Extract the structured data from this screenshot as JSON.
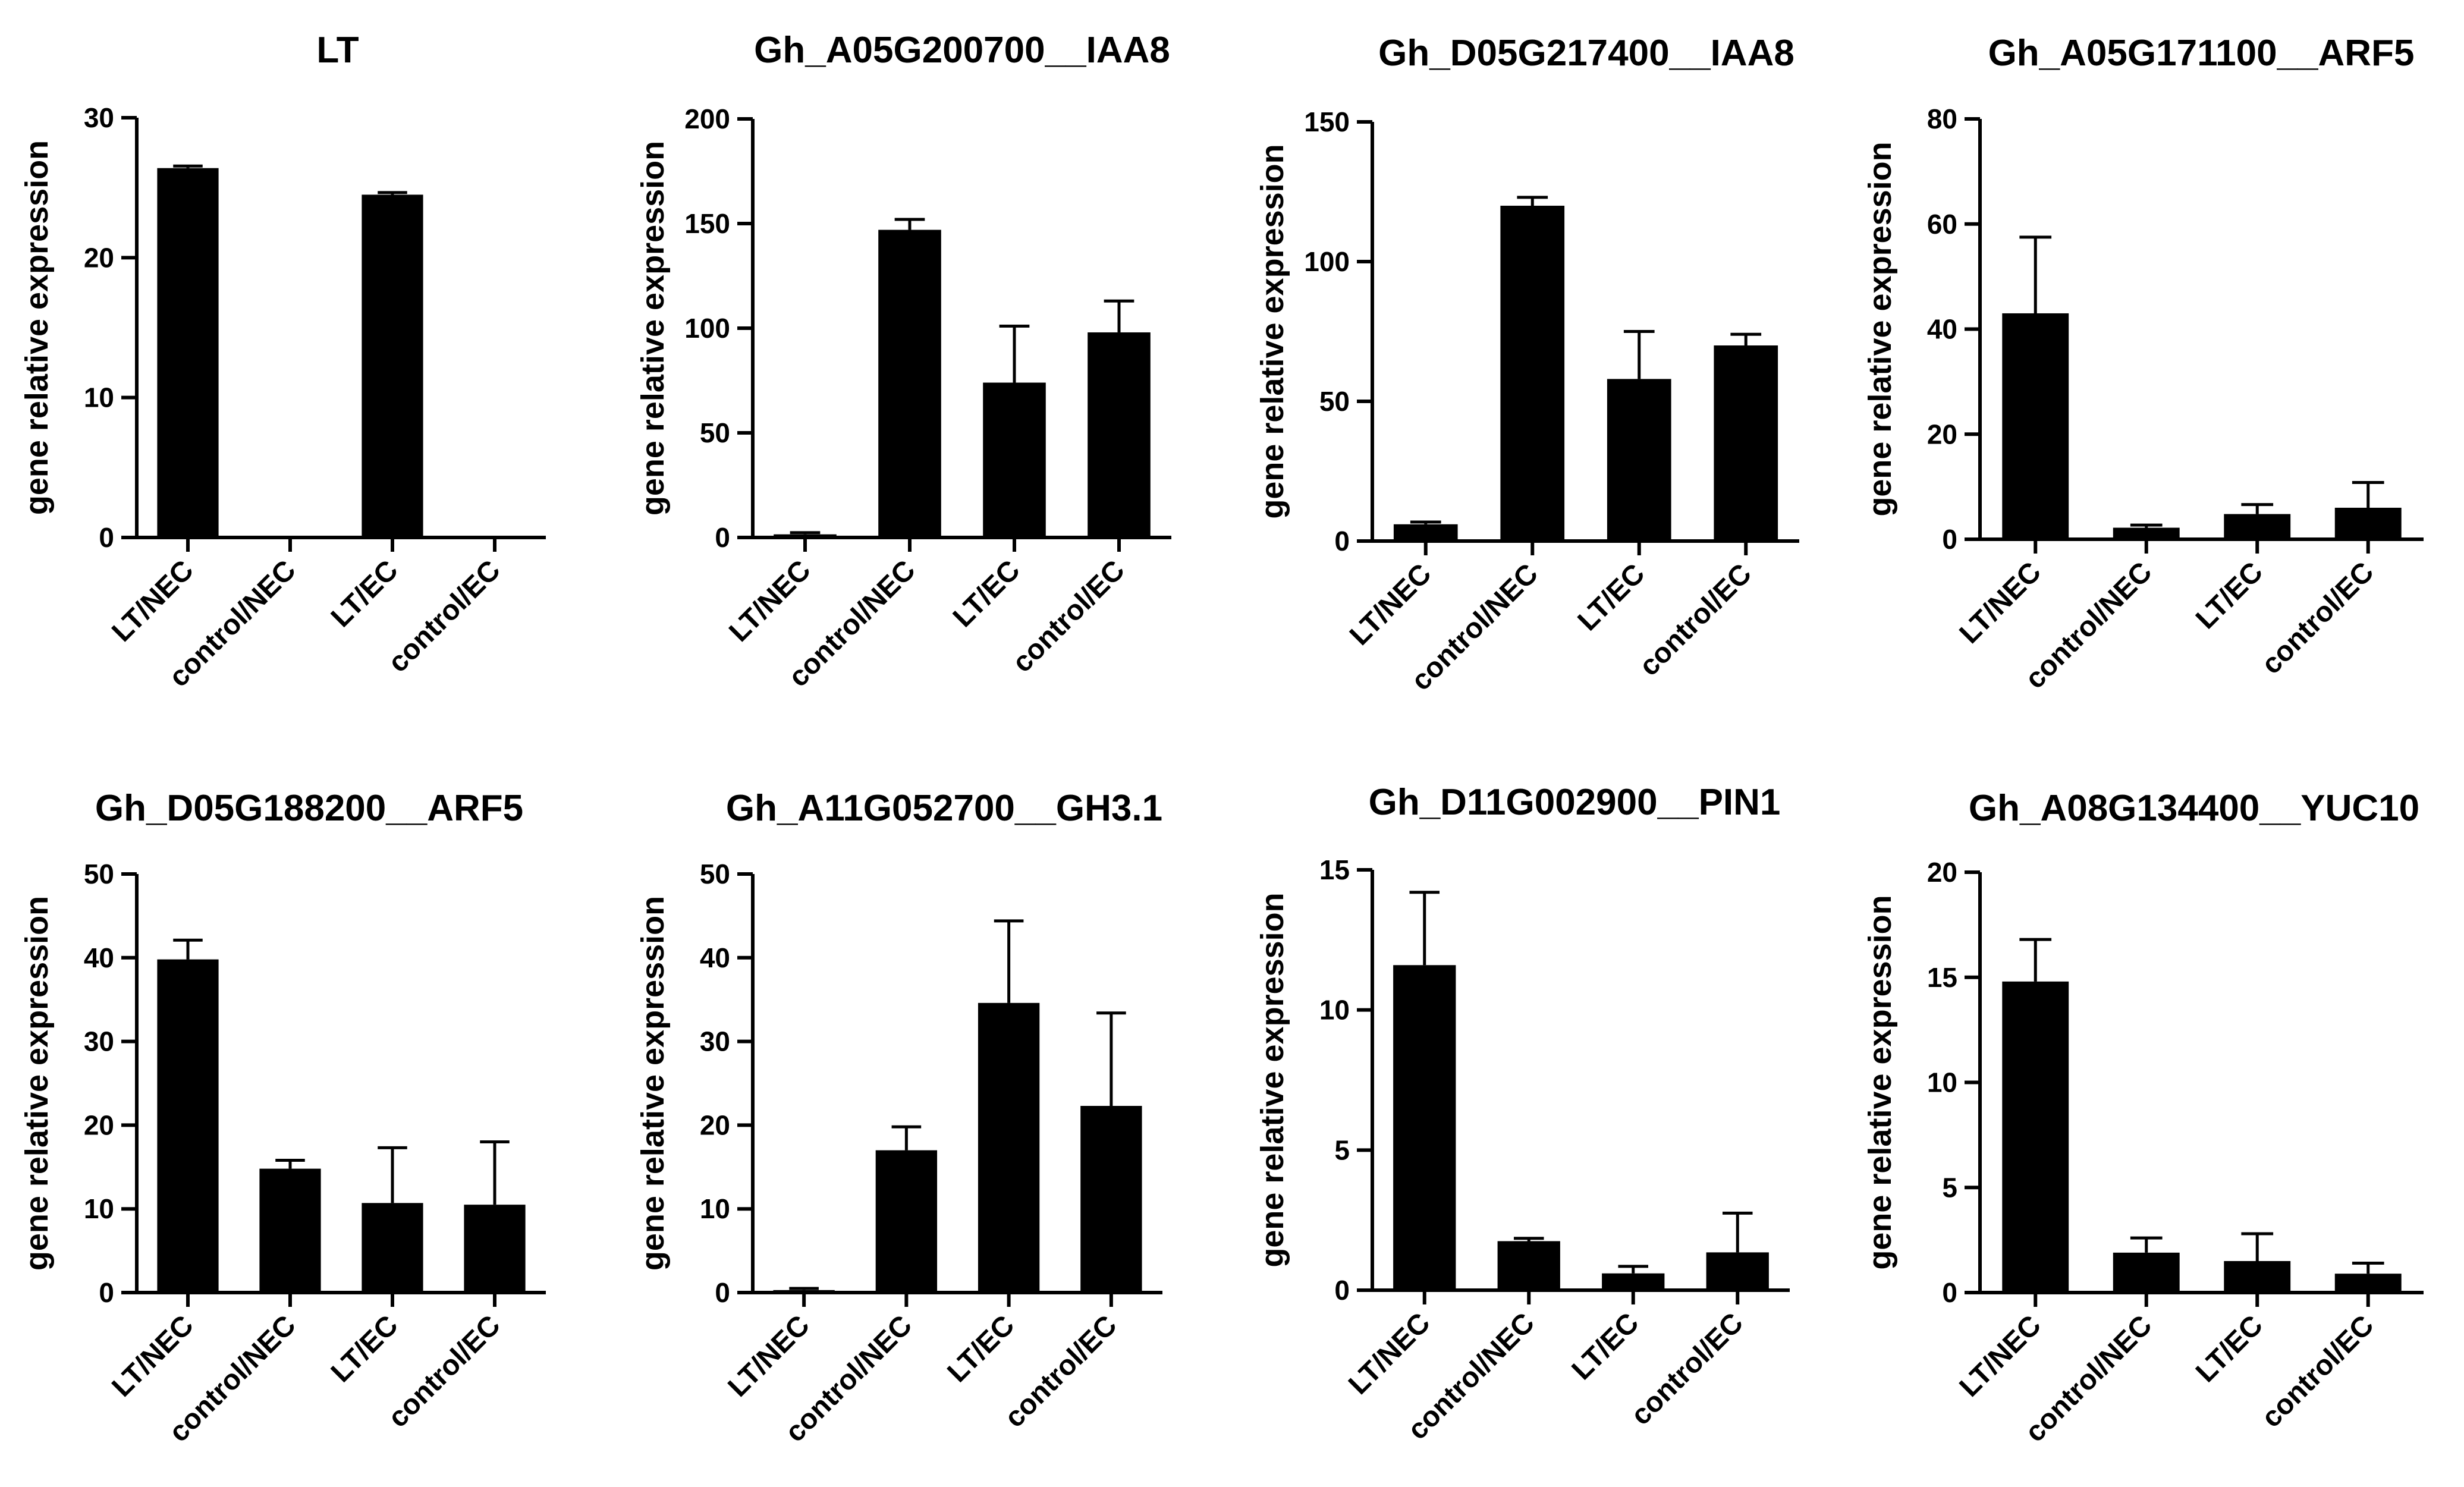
{
  "chart_data": [
    {
      "type": "bar",
      "title": "LT",
      "ylabel": "gene relative  expression",
      "categories": [
        "LT/NEC",
        "control/NEC",
        "LT/EC",
        "control/EC"
      ],
      "values": [
        26.4,
        0,
        24.5,
        0
      ],
      "errors": [
        0.15,
        0,
        0.15,
        0
      ],
      "ylim": [
        0,
        30
      ],
      "yticks": [
        0,
        10,
        20,
        30
      ],
      "grid": false,
      "color": "#000000"
    },
    {
      "type": "bar",
      "title": "Gh_A05G200700__IAA8",
      "ylabel": "gene relative  expression",
      "categories": [
        "LT/NEC",
        "control/NEC",
        "LT/EC",
        "control/EC"
      ],
      "values": [
        1.5,
        147,
        74,
        98
      ],
      "errors": [
        0.8,
        5,
        27,
        15
      ],
      "ylim": [
        0,
        200
      ],
      "yticks": [
        0,
        50,
        100,
        150,
        200
      ],
      "grid": false,
      "color": "#000000"
    },
    {
      "type": "bar",
      "title": "Gh_D05G217400__IAA8",
      "ylabel": "gene relative  expression",
      "categories": [
        "LT/NEC",
        "control/NEC",
        "LT/EC",
        "control/EC"
      ],
      "values": [
        6,
        120,
        58,
        70
      ],
      "errors": [
        0.8,
        3,
        17,
        4
      ],
      "ylim": [
        0,
        150
      ],
      "yticks": [
        0,
        50,
        100,
        150
      ],
      "grid": false,
      "color": "#000000"
    },
    {
      "type": "bar",
      "title": "Gh_A05G171100__ARF5",
      "ylabel": "gene relative  expression",
      "categories": [
        "LT/NEC",
        "control/NEC",
        "LT/EC",
        "control/EC"
      ],
      "values": [
        43,
        2.2,
        4.8,
        6
      ],
      "errors": [
        14.5,
        0.5,
        1.8,
        4.8
      ],
      "ylim": [
        0,
        80
      ],
      "yticks": [
        0,
        20,
        40,
        60,
        80
      ],
      "grid": false,
      "color": "#000000"
    },
    {
      "type": "bar",
      "title": "Gh_D05G188200__ARF5",
      "ylabel": "gene relative expression",
      "categories": [
        "LT/NEC",
        "control/NEC",
        "LT/EC",
        "control/EC"
      ],
      "values": [
        39.8,
        14.8,
        10.7,
        10.5
      ],
      "errors": [
        2.3,
        1,
        6.6,
        7.5
      ],
      "ylim": [
        0,
        50
      ],
      "yticks": [
        0,
        10,
        20,
        30,
        40,
        50
      ],
      "grid": false,
      "color": "#000000"
    },
    {
      "type": "bar",
      "title": "Gh_A11G052700__GH3.1",
      "ylabel": "gene relative expression",
      "categories": [
        "LT/NEC",
        "control/NEC",
        "LT/EC",
        "control/EC"
      ],
      "values": [
        0.3,
        17,
        34.6,
        22.3
      ],
      "errors": [
        0.2,
        2.8,
        9.8,
        11.1
      ],
      "ylim": [
        0,
        50
      ],
      "yticks": [
        0,
        10,
        20,
        30,
        40,
        50
      ],
      "grid": false,
      "color": "#000000"
    },
    {
      "type": "bar",
      "title": "Gh_D11G002900__PIN1",
      "ylabel": "gene relative expression",
      "categories": [
        "LT/NEC",
        "control/NEC",
        "LT/EC",
        "control/EC"
      ],
      "values": [
        11.6,
        1.75,
        0.6,
        1.35
      ],
      "errors": [
        2.6,
        0.1,
        0.25,
        1.4
      ],
      "ylim": [
        0,
        15
      ],
      "yticks": [
        0,
        5,
        10,
        15
      ],
      "grid": false,
      "color": "#000000"
    },
    {
      "type": "bar",
      "title": "Gh_A08G134400__YUC10",
      "ylabel": "gene relative  expression",
      "categories": [
        "LT/NEC",
        "control/NEC",
        "LT/EC",
        "control/EC"
      ],
      "values": [
        14.8,
        1.9,
        1.5,
        0.9
      ],
      "errors": [
        2,
        0.7,
        1.3,
        0.5
      ],
      "ylim": [
        0,
        20
      ],
      "yticks": [
        0,
        5,
        10,
        15,
        20
      ],
      "grid": false,
      "color": "#000000"
    }
  ]
}
